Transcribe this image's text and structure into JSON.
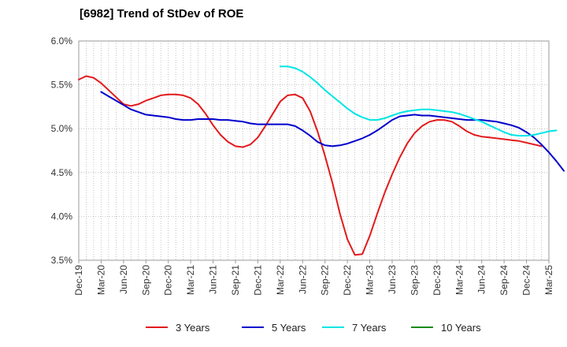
{
  "title": "[6982]  Trend of StDev of ROE",
  "chart_data": {
    "type": "line",
    "title": "[6982]  Trend of StDev of ROE",
    "xlabel": "",
    "ylabel": "",
    "ylim": [
      3.5,
      6.0
    ],
    "y_ticks": [
      "3.5%",
      "4.0%",
      "4.5%",
      "5.0%",
      "5.5%",
      "6.0%"
    ],
    "y_tick_values": [
      3.5,
      4.0,
      4.5,
      5.0,
      5.5,
      6.0
    ],
    "x_ticks": [
      "Dec-19",
      "Mar-20",
      "Jun-20",
      "Sep-20",
      "Dec-20",
      "Mar-21",
      "Jun-21",
      "Sep-21",
      "Dec-21",
      "Mar-22",
      "Jun-22",
      "Sep-22",
      "Dec-22",
      "Mar-23",
      "Jun-23",
      "Sep-23",
      "Dec-23",
      "Mar-24",
      "Jun-24",
      "Sep-24",
      "Dec-24",
      "Mar-25"
    ],
    "grid": true,
    "legend_position": "bottom",
    "series": [
      {
        "name": "3 Years",
        "color": "#e31a1c",
        "start_month": 0,
        "values": [
          5.56,
          5.6,
          5.58,
          5.52,
          5.44,
          5.36,
          5.28,
          5.26,
          5.28,
          5.32,
          5.35,
          5.38,
          5.39,
          5.39,
          5.38,
          5.35,
          5.28,
          5.17,
          5.04,
          4.93,
          4.85,
          4.8,
          4.79,
          4.82,
          4.9,
          5.03,
          5.17,
          5.31,
          5.38,
          5.39,
          5.35,
          5.2,
          4.97,
          4.69,
          4.38,
          4.03,
          3.74,
          3.56,
          3.57,
          3.78,
          4.03,
          4.27,
          4.48,
          4.67,
          4.83,
          4.95,
          5.03,
          5.08,
          5.1,
          5.1,
          5.08,
          5.03,
          4.97,
          4.93,
          4.91,
          4.9,
          4.89,
          4.88,
          4.87,
          4.86,
          4.84,
          4.82,
          4.8
        ]
      },
      {
        "name": "5 Years",
        "color": "#0000cc",
        "start_month": 3,
        "values": [
          5.42,
          5.37,
          5.32,
          5.27,
          5.22,
          5.19,
          5.16,
          5.15,
          5.14,
          5.13,
          5.11,
          5.1,
          5.1,
          5.11,
          5.11,
          5.11,
          5.1,
          5.1,
          5.09,
          5.08,
          5.06,
          5.05,
          5.05,
          5.05,
          5.05,
          5.05,
          5.03,
          4.98,
          4.92,
          4.85,
          4.81,
          4.8,
          4.81,
          4.83,
          4.86,
          4.89,
          4.93,
          4.98,
          5.04,
          5.1,
          5.14,
          5.15,
          5.16,
          5.15,
          5.15,
          5.14,
          5.13,
          5.12,
          5.11,
          5.1,
          5.1,
          5.1,
          5.09,
          5.08,
          5.06,
          5.04,
          5.01,
          4.96,
          4.9,
          4.82,
          4.73,
          4.63,
          4.52
        ]
      },
      {
        "name": "7 Years",
        "color": "#00e5e5",
        "start_month": 27,
        "values": [
          5.71,
          5.71,
          5.69,
          5.65,
          5.59,
          5.52,
          5.44,
          5.37,
          5.3,
          5.23,
          5.17,
          5.13,
          5.1,
          5.1,
          5.12,
          5.15,
          5.18,
          5.2,
          5.21,
          5.22,
          5.22,
          5.21,
          5.2,
          5.19,
          5.17,
          5.14,
          5.11,
          5.08,
          5.04,
          5.0,
          4.96,
          4.93,
          4.92,
          4.92,
          4.93,
          4.95,
          4.97,
          4.98
        ]
      },
      {
        "name": "10 Years",
        "color": "#1a8c1a",
        "start_month": 0,
        "values": []
      }
    ]
  }
}
